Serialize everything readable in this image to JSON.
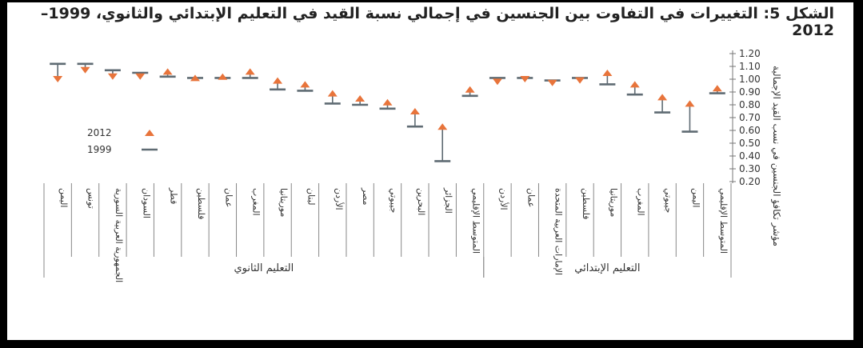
{
  "chart_data": {
    "type": "scatter",
    "title": "الشكل 5: التغييرات في التفاوت بين الجنسين في إجمالي نسبة القيد في التعليم الإبتدائي والثانوي، 1999–2012",
    "ylabel": "مؤشر تكافؤ الجنسين في نسب القيد الإجمالية",
    "ylim": [
      0.2,
      1.2
    ],
    "yticks": [
      "0.20",
      "0.30",
      "0.40",
      "0.50",
      "0.60",
      "0.70",
      "0.80",
      "0.90",
      "1.00",
      "1.10",
      "1.20"
    ],
    "legend": {
      "position": "left",
      "items": [
        {
          "label": "2012",
          "marker": "triangle",
          "color": "#e8743b"
        },
        {
          "label": "1999",
          "marker": "dash",
          "color": "#5f6b73"
        }
      ]
    },
    "groups": [
      {
        "name": "التعليم الثانوي",
        "categories": [
          "اليمن",
          "تونس",
          "الجمهورية العربية السورية",
          "السودان",
          "قطر",
          "فلسطين",
          "عمان",
          "المغرب",
          "موريتانيا",
          "لبنان",
          "الأردن",
          "مصر",
          "جيبوتي",
          "البحرين",
          "الجزائر",
          "المتوسط الإقليمي"
        ],
        "values_1999": [
          1.12,
          1.12,
          1.07,
          1.05,
          1.02,
          1.01,
          1.01,
          1.01,
          0.92,
          0.91,
          0.81,
          0.8,
          0.77,
          0.63,
          0.36,
          0.87
        ],
        "values_2012": [
          1.0,
          1.07,
          1.02,
          1.02,
          1.06,
          1.01,
          1.02,
          1.06,
          0.99,
          0.96,
          0.89,
          0.85,
          0.82,
          0.75,
          0.63,
          0.92
        ]
      },
      {
        "name": "التعليم الإبتدائي",
        "categories": [
          "الأردن",
          "عمان",
          "الإمارات العربية المتحدة",
          "فلسطين",
          "موريتانيا",
          "المغرب",
          "جيبوتي",
          "اليمن",
          "المتوسط الإقليمي"
        ],
        "values_1999": [
          1.01,
          1.01,
          0.99,
          1.01,
          0.96,
          0.88,
          0.74,
          0.59,
          0.89
        ],
        "values_2012": [
          0.98,
          1.0,
          0.97,
          0.99,
          1.05,
          0.96,
          0.86,
          0.81,
          0.93
        ]
      }
    ]
  }
}
